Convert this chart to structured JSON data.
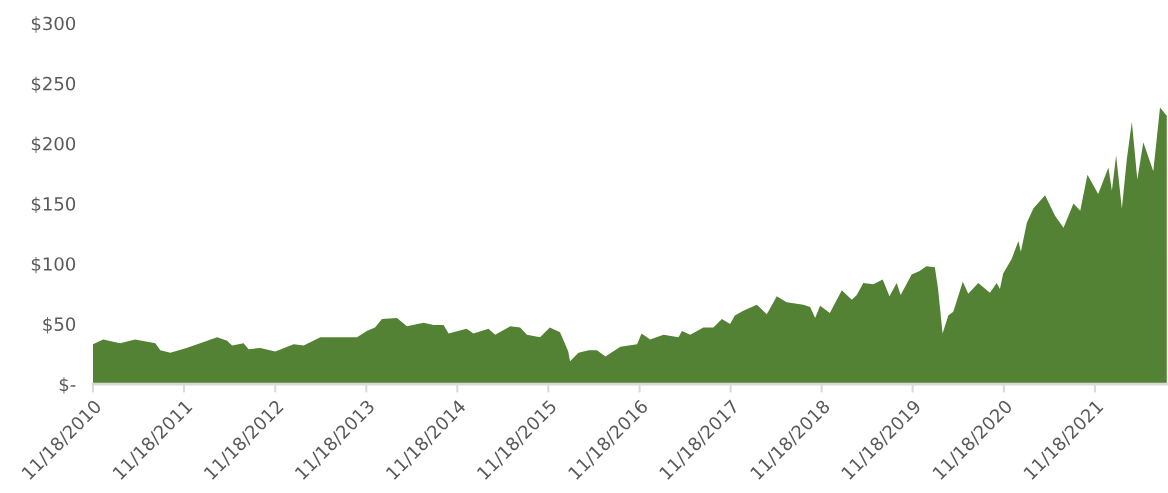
{
  "chart_data": {
    "type": "area",
    "x": [
      "2010-11-18",
      "2010-12-29",
      "2011-03-07",
      "2011-05-06",
      "2011-07-26",
      "2011-08-15",
      "2011-09-24",
      "2011-11-28",
      "2012-01-22",
      "2012-03-30",
      "2012-05-09",
      "2012-05-29",
      "2012-07-14",
      "2012-08-03",
      "2012-09-19",
      "2012-11-18",
      "2013-01-31",
      "2013-03-12",
      "2013-05-18",
      "2013-08-06",
      "2013-10-12",
      "2013-11-20",
      "2013-12-23",
      "2014-01-20",
      "2014-03-21",
      "2014-04-30",
      "2014-07-06",
      "2014-08-15",
      "2014-09-24",
      "2014-10-14",
      "2014-12-25",
      "2015-01-22",
      "2015-03-23",
      "2015-04-19",
      "2015-06-18",
      "2015-07-28",
      "2015-08-24",
      "2015-10-16",
      "2015-11-24",
      "2016-01-04",
      "2016-02-06",
      "2016-02-13",
      "2016-03-18",
      "2016-04-28",
      "2016-05-31",
      "2016-07-04",
      "2016-09-02",
      "2016-11-08",
      "2016-11-26",
      "2016-12-30",
      "2017-02-22",
      "2017-04-23",
      "2017-05-07",
      "2017-06-09",
      "2017-08-01",
      "2017-09-10",
      "2017-10-14",
      "2017-11-16",
      "2017-12-05",
      "2018-01-08",
      "2018-03-03",
      "2018-04-12",
      "2018-05-09",
      "2018-05-22",
      "2018-07-01",
      "2018-09-06",
      "2018-10-03",
      "2018-10-23",
      "2018-11-12",
      "2018-12-21",
      "2019-02-07",
      "2019-03-19",
      "2019-04-08",
      "2019-05-04",
      "2019-06-13",
      "2019-07-21",
      "2019-08-17",
      "2019-09-15",
      "2019-10-01",
      "2019-11-14",
      "2019-12-16",
      "2020-01-12",
      "2020-02-15",
      "2020-02-28",
      "2020-03-17",
      "2020-04-09",
      "2020-04-29",
      "2020-06-06",
      "2020-06-28",
      "2020-08-07",
      "2020-09-23",
      "2020-10-20",
      "2020-11-02",
      "2020-11-15",
      "2020-12-19",
      "2021-01-15",
      "2021-01-25",
      "2021-02-18",
      "2021-03-16",
      "2021-05-02",
      "2021-06-11",
      "2021-07-15",
      "2021-08-24",
      "2021-09-20",
      "2021-10-19",
      "2021-12-01",
      "2022-01-11",
      "2022-01-25",
      "2022-02-11",
      "2022-03-06",
      "2022-03-26",
      "2022-04-15",
      "2022-05-07",
      "2022-05-31",
      "2022-07-10",
      "2022-08-06",
      "2022-09-02"
    ],
    "series": [
      {
        "color": "#548235",
        "values": [
          33,
          37,
          34,
          37,
          34,
          28,
          26,
          30,
          34,
          39,
          36,
          32,
          34,
          29,
          30,
          27,
          33,
          32,
          39,
          39,
          39,
          44,
          47,
          54,
          55,
          48,
          51,
          49,
          49,
          42,
          46,
          42,
          46,
          41,
          48,
          47,
          41,
          39,
          47,
          43,
          27,
          19,
          26,
          28,
          28,
          23,
          31,
          33,
          42,
          37,
          41,
          39,
          44,
          41,
          47,
          47,
          54,
          50,
          57,
          61,
          66,
          58,
          68,
          73,
          68,
          66,
          64,
          55,
          65,
          59,
          78,
          70,
          74,
          84,
          83,
          87,
          73,
          84,
          74,
          91,
          94,
          98,
          97,
          79,
          42,
          57,
          60,
          85,
          75,
          84,
          76,
          84,
          79,
          92,
          104,
          119,
          110,
          134,
          146,
          157,
          140,
          130,
          150,
          144,
          174,
          158,
          180,
          161,
          190,
          146,
          187,
          218,
          170,
          201,
          177,
          230,
          223
        ]
      }
    ],
    "xlim": [
      "2010-11-18",
      "2022-09-07"
    ],
    "xticks": [
      {
        "value": "2010-11-18",
        "label": "11/18/2010"
      },
      {
        "value": "2011-11-18",
        "label": "11/18/2011"
      },
      {
        "value": "2012-11-18",
        "label": "11/18/2012"
      },
      {
        "value": "2013-11-18",
        "label": "11/18/2013"
      },
      {
        "value": "2014-11-18",
        "label": "11/18/2014"
      },
      {
        "value": "2015-11-18",
        "label": "11/18/2015"
      },
      {
        "value": "2016-11-18",
        "label": "11/18/2016"
      },
      {
        "value": "2017-11-18",
        "label": "11/18/2017"
      },
      {
        "value": "2018-11-18",
        "label": "11/18/2018"
      },
      {
        "value": "2019-11-18",
        "label": "11/18/2019"
      },
      {
        "value": "2020-11-18",
        "label": "11/18/2020"
      },
      {
        "value": "2021-11-18",
        "label": "11/18/2021"
      }
    ],
    "ylim": [
      0,
      300
    ],
    "yticks": [
      {
        "value": 0,
        "label": "$-"
      },
      {
        "value": 50,
        "label": "$50"
      },
      {
        "value": 100,
        "label": "$100"
      },
      {
        "value": 150,
        "label": "$150"
      },
      {
        "value": 200,
        "label": "$200"
      },
      {
        "value": 250,
        "label": "$250"
      },
      {
        "value": 300,
        "label": "$300"
      }
    ],
    "grid": false
  }
}
